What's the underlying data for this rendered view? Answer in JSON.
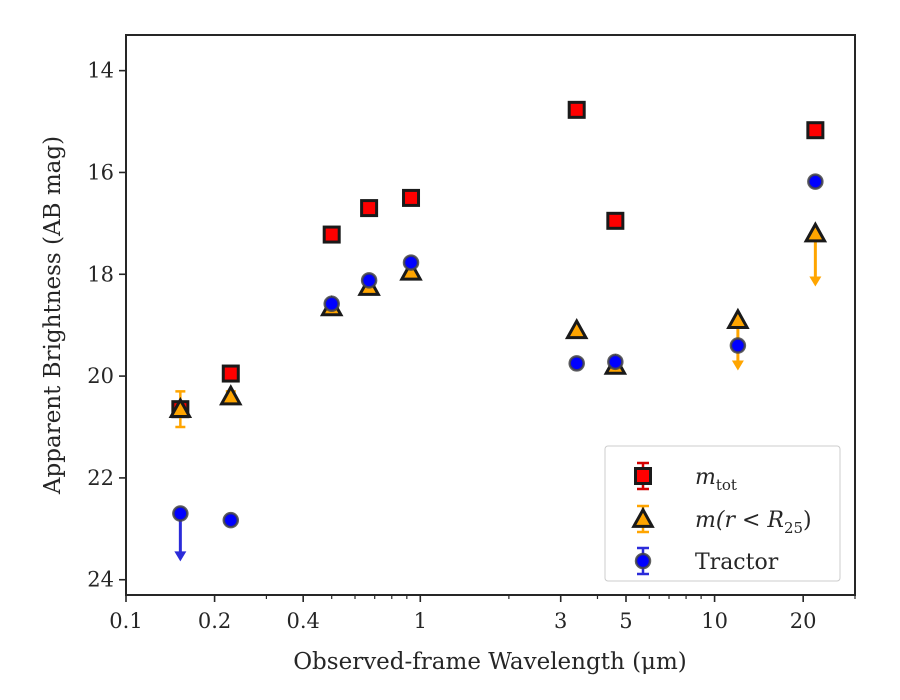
{
  "chart_data": {
    "type": "scatter",
    "xlabel": "Observed-frame Wavelength (μm)",
    "ylabel": "Apparent Brightness (AB mag)",
    "xscale": "log",
    "xlim": [
      0.1,
      30
    ],
    "ylim": [
      24.3,
      13.3
    ],
    "y_inverted": true,
    "xticks": [
      {
        "value": 0.1,
        "label": "0.1"
      },
      {
        "value": 0.2,
        "label": "0.2"
      },
      {
        "value": 0.4,
        "label": "0.4"
      },
      {
        "value": 1,
        "label": "1"
      },
      {
        "value": 3,
        "label": "3"
      },
      {
        "value": 5,
        "label": "5"
      },
      {
        "value": 10,
        "label": "10"
      },
      {
        "value": 20,
        "label": "20"
      }
    ],
    "yticks": [
      {
        "value": 14,
        "label": "14"
      },
      {
        "value": 16,
        "label": "16"
      },
      {
        "value": 18,
        "label": "18"
      },
      {
        "value": 20,
        "label": "20"
      },
      {
        "value": 22,
        "label": "22"
      },
      {
        "value": 24,
        "label": "24"
      }
    ],
    "legend_position": "lower-right",
    "series": [
      {
        "key": "mtot",
        "legend_base": "m",
        "legend_sub": "tot",
        "marker": "square",
        "color": "#ff0000",
        "edgecolor": "#1a1a1a",
        "errcolor": "#d40000",
        "points": [
          {
            "x": 0.153,
            "y": 20.65,
            "err": 0.05
          },
          {
            "x": 0.227,
            "y": 19.95,
            "err": 0.03
          },
          {
            "x": 0.5,
            "y": 17.22,
            "err": 0.02
          },
          {
            "x": 0.67,
            "y": 16.7,
            "err": 0.02
          },
          {
            "x": 0.93,
            "y": 16.5,
            "err": 0.02
          },
          {
            "x": 3.4,
            "y": 14.77,
            "err": 0.02
          },
          {
            "x": 4.6,
            "y": 16.95,
            "err": 0.02
          },
          {
            "x": 22.0,
            "y": 15.17,
            "err": 0.02
          }
        ]
      },
      {
        "key": "mr25",
        "legend_base": "m(r < R",
        "legend_sub": "25",
        "legend_tail": ")",
        "marker": "triangle",
        "color": "#ffa500",
        "edgecolor": "#1a1a1a",
        "errcolor": "#ffa500",
        "points": [
          {
            "x": 0.153,
            "y": 20.65,
            "err": 0.35
          },
          {
            "x": 0.227,
            "y": 20.4,
            "err": 0.1
          },
          {
            "x": 0.5,
            "y": 18.65,
            "err": 0.05
          },
          {
            "x": 0.67,
            "y": 18.25,
            "err": 0.05
          },
          {
            "x": 0.93,
            "y": 17.95,
            "err": 0.03
          },
          {
            "x": 3.4,
            "y": 19.1,
            "err": 0.03
          },
          {
            "x": 4.6,
            "y": 19.8,
            "err": 0.03
          },
          {
            "x": 12.0,
            "y": 18.9,
            "upper_limit": true,
            "arrow_to": 19.85
          },
          {
            "x": 22.0,
            "y": 17.2,
            "upper_limit": true,
            "arrow_to": 18.2
          }
        ]
      },
      {
        "key": "tractor",
        "legend_label": "Tractor",
        "marker": "circle",
        "color": "#0000ff",
        "edgecolor": "#444444",
        "errcolor": "#2b2bd9",
        "points": [
          {
            "x": 0.153,
            "y": 22.7,
            "upper_limit": true,
            "arrow_to": 23.6
          },
          {
            "x": 0.227,
            "y": 22.83,
            "err": 0.03
          },
          {
            "x": 0.5,
            "y": 18.58,
            "err": 0.03
          },
          {
            "x": 0.67,
            "y": 18.12,
            "err": 0.03
          },
          {
            "x": 0.93,
            "y": 17.77,
            "err": 0.03
          },
          {
            "x": 3.4,
            "y": 19.75,
            "err": 0.03
          },
          {
            "x": 4.6,
            "y": 19.72,
            "err": 0.03
          },
          {
            "x": 12.0,
            "y": 19.4,
            "err": 0.05
          },
          {
            "x": 22.0,
            "y": 16.18,
            "err": 0.03
          }
        ]
      }
    ]
  }
}
